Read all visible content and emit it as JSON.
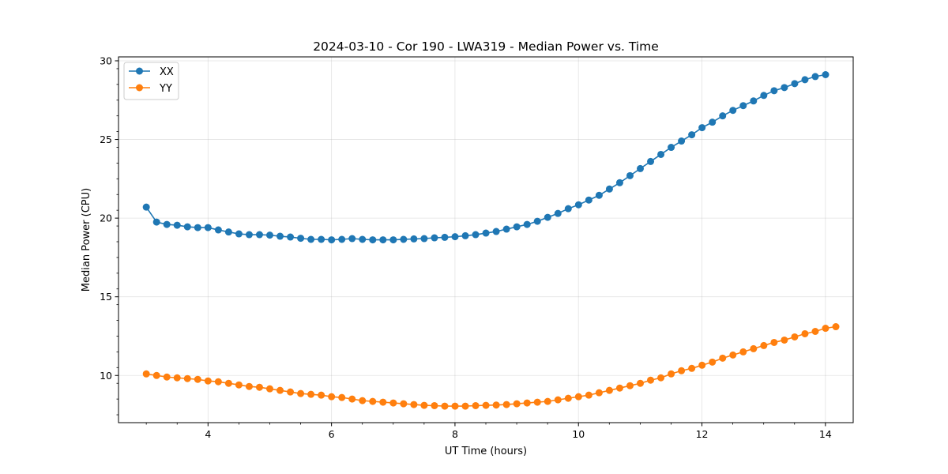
{
  "chart_data": {
    "type": "line",
    "title": "2024-03-10 - Cor 190 - LWA319 - Median Power vs. Time",
    "xlabel": "UT Time (hours)",
    "ylabel": "Median Power (CPU)",
    "xlim": [
      2.55,
      14.45
    ],
    "ylim": [
      7.0,
      30.25
    ],
    "xticks": [
      4,
      6,
      8,
      10,
      12,
      14
    ],
    "xtick_labels": [
      "4",
      "6",
      "8",
      "10",
      "12",
      "14"
    ],
    "yticks": [
      10,
      15,
      20,
      25,
      30
    ],
    "ytick_labels": [
      "10",
      "15",
      "20",
      "25",
      "30"
    ],
    "grid": true,
    "legend_position": "top-left",
    "x_start": 3.0,
    "x_step": 0.1667,
    "series": [
      {
        "name": "XX",
        "color": "#1f77b4",
        "values": [
          20.7,
          19.75,
          19.6,
          19.55,
          19.45,
          19.4,
          19.4,
          19.25,
          19.12,
          19.0,
          18.95,
          18.95,
          18.92,
          18.85,
          18.8,
          18.72,
          18.65,
          18.65,
          18.62,
          18.65,
          18.7,
          18.65,
          18.62,
          18.62,
          18.62,
          18.65,
          18.68,
          18.7,
          18.75,
          18.78,
          18.82,
          18.88,
          18.95,
          19.05,
          19.15,
          19.3,
          19.45,
          19.6,
          19.8,
          20.05,
          20.3,
          20.6,
          20.85,
          21.15,
          21.45,
          21.85,
          22.25,
          22.7,
          23.15,
          23.6,
          24.05,
          24.5,
          24.9,
          25.3,
          25.75,
          26.1,
          26.5,
          26.85,
          27.15,
          27.45,
          27.8,
          28.1,
          28.3,
          28.55,
          28.8,
          29.0,
          29.12
        ]
      },
      {
        "name": "YY",
        "color": "#ff7f0e",
        "values": [
          10.1,
          10.0,
          9.9,
          9.85,
          9.8,
          9.75,
          9.65,
          9.6,
          9.5,
          9.4,
          9.3,
          9.25,
          9.15,
          9.05,
          8.95,
          8.85,
          8.8,
          8.75,
          8.65,
          8.6,
          8.5,
          8.4,
          8.35,
          8.3,
          8.25,
          8.2,
          8.15,
          8.1,
          8.08,
          8.05,
          8.05,
          8.05,
          8.08,
          8.1,
          8.12,
          8.15,
          8.2,
          8.25,
          8.3,
          8.35,
          8.45,
          8.55,
          8.65,
          8.75,
          8.9,
          9.05,
          9.2,
          9.35,
          9.5,
          9.7,
          9.85,
          10.1,
          10.3,
          10.45,
          10.65,
          10.85,
          11.1,
          11.3,
          11.5,
          11.7,
          11.9,
          12.1,
          12.25,
          12.45,
          12.65,
          12.8,
          13.0,
          13.1
        ]
      }
    ]
  }
}
